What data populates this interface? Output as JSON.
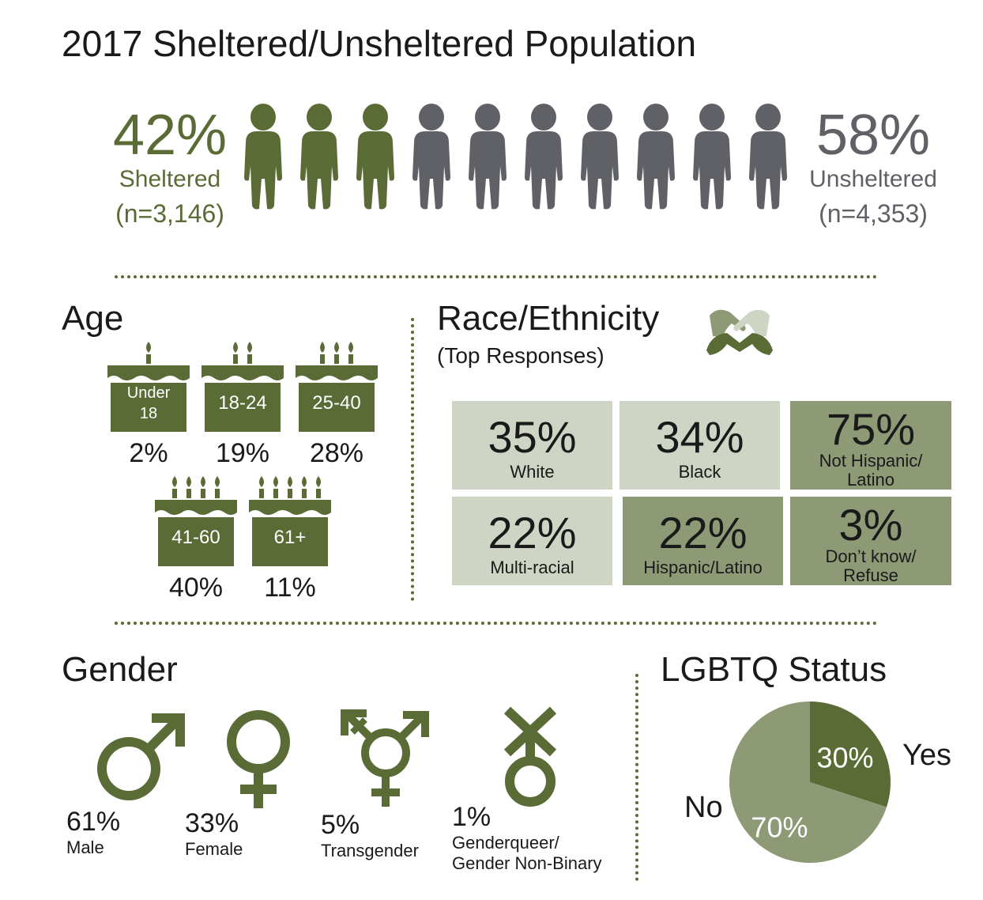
{
  "title": "2017 Sheltered/Unsheltered Population",
  "shelter": {
    "sheltered_pct": "42%",
    "sheltered_label": "Sheltered",
    "sheltered_n": "(n=3,146)",
    "unsheltered_pct": "58%",
    "unsheltered_label": "Unsheltered",
    "unsheltered_n": "(n=4,353)",
    "colors": {
      "sheltered": "#5a6b35",
      "unsheltered": "#5f6166"
    }
  },
  "age": {
    "heading": "Age",
    "groups": [
      {
        "label_line1": "Under",
        "label_line2": "18",
        "pct": "2%",
        "candles": 1
      },
      {
        "label_line1": "18-24",
        "label_line2": "",
        "pct": "19%",
        "candles": 2
      },
      {
        "label_line1": "25-40",
        "label_line2": "",
        "pct": "28%",
        "candles": 3
      },
      {
        "label_line1": "41-60",
        "label_line2": "",
        "pct": "40%",
        "candles": 4
      },
      {
        "label_line1": "61+",
        "label_line2": "",
        "pct": "11%",
        "candles": 5
      }
    ]
  },
  "race": {
    "heading": "Race/Ethnicity",
    "subheading": "(Top Responses)",
    "cells": [
      {
        "pct": "35%",
        "label": "White"
      },
      {
        "pct": "34%",
        "label": "Black"
      },
      {
        "pct": "75%",
        "label": "Not Hispanic/ Latino",
        "label_l1": "Not Hispanic/",
        "label_l2": "Latino"
      },
      {
        "pct": "22%",
        "label": "Multi-racial"
      },
      {
        "pct": "22%",
        "label": "Hispanic/Latino"
      },
      {
        "pct": "3%",
        "label": "Don’t know/ Refuse",
        "label_l1": "Don’t know/",
        "label_l2": "Refuse"
      }
    ],
    "colors": {
      "light": "#cfd5c4",
      "dark": "#8e9a75"
    }
  },
  "gender": {
    "heading": "Gender",
    "items": [
      {
        "pct": "61%",
        "label": "Male",
        "icon": "male-symbol-icon"
      },
      {
        "pct": "33%",
        "label": "Female",
        "icon": "female-symbol-icon"
      },
      {
        "pct": "5%",
        "label": "Transgender",
        "icon": "transgender-symbol-icon"
      },
      {
        "pct": "1%",
        "label_l1": "Genderqueer/",
        "label_l2": "Gender Non-Binary",
        "icon": "genderqueer-symbol-icon"
      }
    ]
  },
  "lgbtq": {
    "heading": "LGBTQ Status",
    "yes_label": "Yes",
    "no_label": "No",
    "yes_pct": "30%",
    "no_pct": "70%"
  },
  "chart_data": [
    {
      "type": "pictograph",
      "title": "2017 Sheltered/Unsheltered Population",
      "categories": [
        "Sheltered",
        "Unsheltered"
      ],
      "values": [
        42,
        58
      ],
      "counts": [
        3146,
        4353
      ]
    },
    {
      "type": "bar",
      "title": "Age",
      "categories": [
        "Under 18",
        "18-24",
        "25-40",
        "41-60",
        "61+"
      ],
      "values": [
        2,
        19,
        28,
        40,
        11
      ]
    },
    {
      "type": "table",
      "title": "Race/Ethnicity",
      "subtitle": "(Top Responses)",
      "categories": [
        "White",
        "Black",
        "Not Hispanic/Latino",
        "Multi-racial",
        "Hispanic/Latino",
        "Don’t know/Refuse"
      ],
      "values": [
        35,
        34,
        75,
        22,
        22,
        3
      ]
    },
    {
      "type": "pictograph",
      "title": "Gender",
      "categories": [
        "Male",
        "Female",
        "Transgender",
        "Genderqueer/Gender Non-Binary"
      ],
      "values": [
        61,
        33,
        5,
        1
      ]
    },
    {
      "type": "pie",
      "title": "LGBTQ Status",
      "categories": [
        "Yes",
        "No"
      ],
      "values": [
        30,
        70
      ],
      "colors": [
        "#5a6b35",
        "#8e9a75"
      ]
    }
  ]
}
